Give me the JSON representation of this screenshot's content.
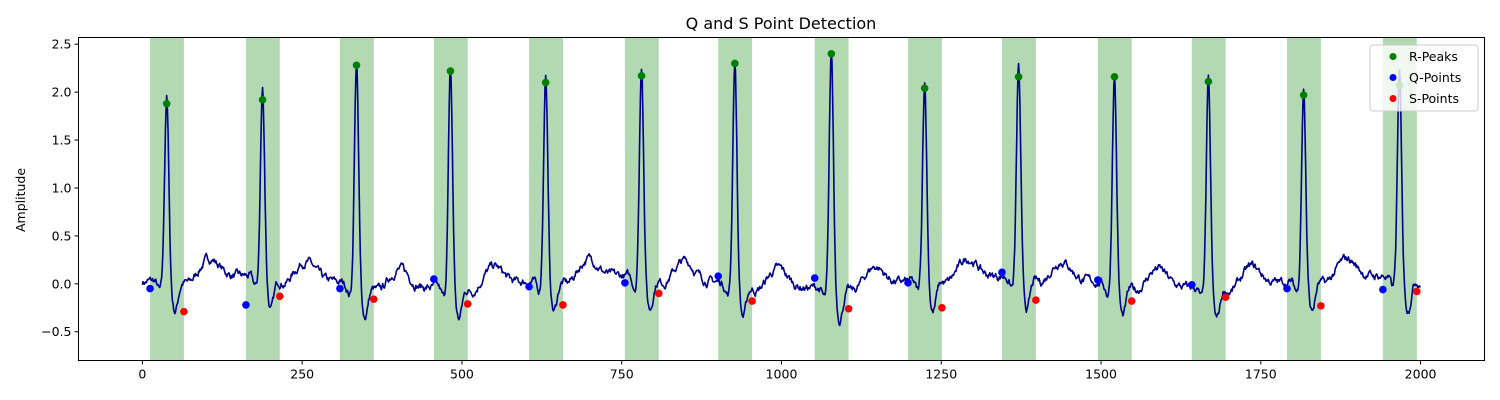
{
  "chart_data": {
    "type": "line",
    "title": "Q and S Point Detection",
    "xlabel": "",
    "ylabel": "Amplitude",
    "xlim": [
      -100,
      2100
    ],
    "ylim": [
      -0.8,
      2.57
    ],
    "xticks": [
      0,
      250,
      500,
      750,
      1000,
      1250,
      1500,
      1750,
      2000
    ],
    "yticks": [
      -0.5,
      0.0,
      0.5,
      1.0,
      1.5,
      2.0,
      2.5
    ],
    "xtick_labels": [
      "0",
      "250",
      "500",
      "750",
      "1000",
      "1250",
      "1500",
      "1750",
      "2000"
    ],
    "ytick_labels": [
      "−0.5",
      "0.0",
      "0.5",
      "1.0",
      "1.5",
      "2.0",
      "2.5"
    ],
    "grid": false,
    "legend_position": "top-right",
    "colors": {
      "signal": "#00008b",
      "r_peaks": "#008000",
      "q_points": "#0000ff",
      "s_points": "#ff0000",
      "window": "#008000"
    },
    "windows": [
      [
        12,
        65
      ],
      [
        162,
        215
      ],
      [
        309,
        362
      ],
      [
        456,
        509
      ],
      [
        605,
        658
      ],
      [
        755,
        808
      ],
      [
        901,
        954
      ],
      [
        1052,
        1105
      ],
      [
        1198,
        1251
      ],
      [
        1345,
        1398
      ],
      [
        1495,
        1548
      ],
      [
        1642,
        1695
      ],
      [
        1791,
        1844
      ],
      [
        1941,
        1994
      ]
    ],
    "r_peaks": {
      "x": [
        38,
        188,
        335,
        482,
        631,
        781,
        927,
        1078,
        1224,
        1371,
        1521,
        1668,
        1817,
        1967
      ],
      "y": [
        1.88,
        1.92,
        2.28,
        2.22,
        2.1,
        2.17,
        2.3,
        2.4,
        2.04,
        2.16,
        2.16,
        2.11,
        1.97,
        2.07
      ]
    },
    "q_points": {
      "x": [
        12,
        162,
        309,
        456,
        605,
        755,
        901,
        1052,
        1198,
        1345,
        1495,
        1642,
        1791,
        1941
      ],
      "y": [
        -0.05,
        -0.22,
        -0.05,
        0.05,
        -0.03,
        0.01,
        0.08,
        0.06,
        0.01,
        0.12,
        0.04,
        -0.01,
        -0.05,
        -0.06
      ]
    },
    "s_points": {
      "x": [
        65,
        215,
        362,
        509,
        658,
        808,
        954,
        1105,
        1251,
        1398,
        1548,
        1695,
        1844,
        1994
      ],
      "y": [
        -0.29,
        -0.13,
        -0.16,
        -0.21,
        -0.22,
        -0.1,
        -0.18,
        -0.26,
        -0.25,
        -0.17,
        -0.18,
        -0.14,
        -0.23,
        -0.08
      ]
    },
    "legend": [
      {
        "label": "R-Peaks",
        "color": "#008000"
      },
      {
        "label": "Q-Points",
        "color": "#0000ff"
      },
      {
        "label": "S-Points",
        "color": "#ff0000"
      }
    ]
  }
}
